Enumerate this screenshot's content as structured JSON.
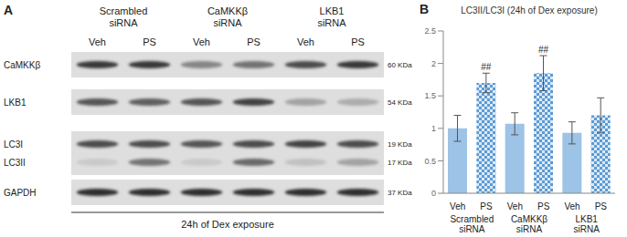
{
  "panel_labels": [
    "A",
    "B"
  ],
  "blot": {
    "groups": [
      "Scrambled siRNA",
      "CaMKKβ siRNA",
      "LKB1 siRNA"
    ],
    "lanes": [
      "Veh",
      "PS"
    ],
    "rows": [
      {
        "name": "CaMKKβ",
        "size": "60 KDa",
        "intensity": [
          0.85,
          0.85,
          0.45,
          0.55,
          0.75,
          0.85
        ]
      },
      {
        "name": "LKB1",
        "size": "54 KDa",
        "intensity": [
          0.7,
          0.65,
          0.7,
          0.8,
          0.3,
          0.25
        ]
      },
      {
        "name": "LC3I",
        "size": "19 KDa",
        "intensity": [
          0.75,
          0.75,
          0.7,
          0.75,
          0.8,
          0.75
        ]
      },
      {
        "name": "LC3II",
        "size": "17 KDa",
        "intensity": [
          0.1,
          0.55,
          0.1,
          0.6,
          0.15,
          0.3
        ]
      },
      {
        "name": "GAPDH",
        "size": "37 KDa",
        "intensity": [
          0.9,
          0.9,
          0.9,
          0.9,
          0.9,
          0.9
        ]
      }
    ],
    "footer": "24h of Dex exposure"
  },
  "chart_data": {
    "type": "bar",
    "title": "LC3II/LC3I (24h of Dex exposure)",
    "categories": [
      "Veh",
      "PS",
      "Veh",
      "PS",
      "Veh",
      "PS"
    ],
    "groups": [
      "Scrambled siRNA",
      "CaMKKβ siRNA",
      "LKB1 siRNA"
    ],
    "values": [
      1.0,
      1.7,
      1.07,
      1.85,
      0.93,
      1.2
    ],
    "errors": [
      0.2,
      0.15,
      0.17,
      0.27,
      0.17,
      0.27
    ],
    "colors": [
      "#9dc3e6",
      "#5b9bd5",
      "#9dc3e6",
      "#5b9bd5",
      "#9dc3e6",
      "#5b9bd5"
    ],
    "annotations": [
      {
        "index": 1,
        "text": "##"
      },
      {
        "index": 3,
        "text": "##"
      }
    ],
    "ylim": [
      0,
      2.5
    ],
    "yticks": [
      0,
      0.5,
      1,
      1.5,
      2,
      2.5
    ],
    "grid": false
  }
}
